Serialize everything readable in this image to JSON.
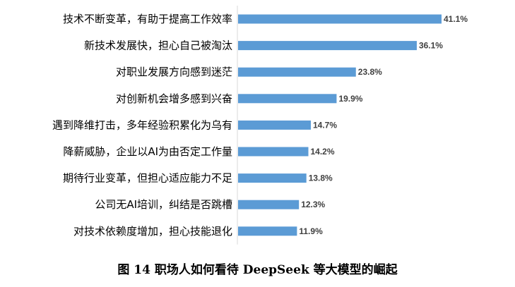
{
  "chart_data": {
    "type": "bar",
    "orientation": "horizontal",
    "title": "图14 职场人如何看待DeepSeek等大模型的崛起",
    "categories": [
      "技术不断变革，有助于提高工作效率",
      "新技术发展快，担心自己被淘汰",
      "对职业发展方向感到迷茫",
      "对创新机会增多感到兴奋",
      "遇到降维打击，多年经验积累化为乌有",
      "降薪威胁，企业以AI为由否定工作量",
      "期待行业变革，但担心适应能力不足",
      "公司无AI培训，纠结是否跳槽",
      "对技术依赖度增加，担心技能退化"
    ],
    "values": [
      41.1,
      36.1,
      23.8,
      19.9,
      14.7,
      14.2,
      13.8,
      12.3,
      11.9
    ],
    "value_labels": [
      "41.1%",
      "36.1%",
      "23.8%",
      "19.9%",
      "14.7%",
      "14.2%",
      "13.8%",
      "12.3%",
      "11.9%"
    ],
    "xlim": [
      0,
      41.1
    ],
    "bar_color": "#5B9BD5",
    "axis_color": "#d9d9d9",
    "grid": false,
    "legend": false
  },
  "caption": "图 14  职场人如何看待 DeepSeek 等大模型的崛起"
}
